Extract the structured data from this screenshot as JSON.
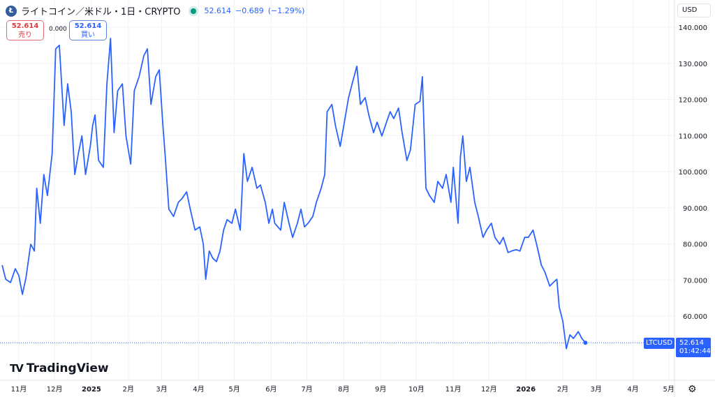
{
  "header": {
    "symbol": "ライトコイン／米ドル・1日・CRYPTO",
    "logo_letter": "Ł",
    "last": "52.614",
    "change": "−0.689",
    "change_pct": "(−1.29%)"
  },
  "trade": {
    "sell_price": "52.614",
    "sell_label": "売り",
    "spread": "0.000",
    "buy_price": "52.614",
    "buy_label": "買い"
  },
  "currency_button": "USD",
  "brand": "TradingView",
  "last_label": {
    "symbol": "LTCUSD",
    "price": "52.614",
    "countdown": "01:42:44"
  },
  "colors": {
    "line": "#2962ff",
    "grid": "#f0f3fa",
    "sell": "#e0393e",
    "buy": "#2962ff"
  },
  "chart_data": {
    "type": "line",
    "series": [
      {
        "name": "LTCUSD",
        "dates": [
          "2024-10-18",
          "2024-10-21",
          "2024-10-25",
          "2024-10-29",
          "2024-11-01",
          "2024-11-04",
          "2024-11-07",
          "2024-11-11",
          "2024-11-14",
          "2024-11-16",
          "2024-11-19",
          "2024-11-22",
          "2024-11-25",
          "2024-11-29",
          "2024-12-02",
          "2024-12-05",
          "2024-12-09",
          "2024-12-12",
          "2024-12-15",
          "2024-12-18",
          "2024-12-21",
          "2024-12-24",
          "2024-12-27",
          "2024-12-31",
          "2025-01-02",
          "2025-01-04",
          "2025-01-07",
          "2025-01-11",
          "2025-01-14",
          "2025-01-17",
          "2025-01-20",
          "2025-01-23",
          "2025-01-27",
          "2025-01-30",
          "2025-02-03",
          "2025-02-06",
          "2025-02-10",
          "2025-02-14",
          "2025-02-17",
          "2025-02-20",
          "2025-02-24",
          "2025-02-27",
          "2025-03-02",
          "2025-03-04",
          "2025-03-07",
          "2025-03-11",
          "2025-03-15",
          "2025-03-18",
          "2025-03-22",
          "2025-03-25",
          "2025-03-29",
          "2025-04-02",
          "2025-04-05",
          "2025-04-07",
          "2025-04-10",
          "2025-04-13",
          "2025-04-16",
          "2025-04-19",
          "2025-04-22",
          "2025-04-25",
          "2025-04-29",
          "2025-05-02",
          "2025-05-06",
          "2025-05-09",
          "2025-05-12",
          "2025-05-16",
          "2025-05-20",
          "2025-05-23",
          "2025-05-27",
          "2025-05-30",
          "2025-06-02",
          "2025-06-04",
          "2025-06-09",
          "2025-06-12",
          "2025-06-16",
          "2025-06-19",
          "2025-06-23",
          "2025-06-26",
          "2025-06-29",
          "2025-07-02",
          "2025-07-06",
          "2025-07-09",
          "2025-07-13",
          "2025-07-16",
          "2025-07-18",
          "2025-07-22",
          "2025-07-25",
          "2025-07-29",
          "2025-08-01",
          "2025-08-05",
          "2025-08-08",
          "2025-08-12",
          "2025-08-15",
          "2025-08-19",
          "2025-08-22",
          "2025-08-26",
          "2025-08-29",
          "2025-09-02",
          "2025-09-05",
          "2025-09-09",
          "2025-09-12",
          "2025-09-16",
          "2025-09-19",
          "2025-09-23",
          "2025-09-26",
          "2025-09-30",
          "2025-10-04",
          "2025-10-06",
          "2025-10-09",
          "2025-10-12",
          "2025-10-16",
          "2025-10-19",
          "2025-10-23",
          "2025-10-26",
          "2025-10-30",
          "2025-11-01",
          "2025-11-05",
          "2025-11-07",
          "2025-11-09",
          "2025-11-12",
          "2025-11-15",
          "2025-11-19",
          "2025-11-22",
          "2025-11-26",
          "2025-11-29",
          "2025-12-03",
          "2025-12-06",
          "2025-12-10",
          "2025-12-13",
          "2025-12-17",
          "2025-12-20",
          "2025-12-24",
          "2025-12-27",
          "2025-12-31",
          "2026-01-03",
          "2026-01-07",
          "2026-01-10",
          "2026-01-14",
          "2026-01-17",
          "2026-01-21",
          "2026-01-24",
          "2026-01-27",
          "2026-01-29",
          "2026-02-01",
          "2026-02-04",
          "2026-02-07",
          "2026-02-10",
          "2026-02-14",
          "2026-02-17",
          "2026-02-20"
        ],
        "values": [
          74.1,
          70.2,
          69.3,
          73.1,
          71.2,
          66.0,
          70.6,
          79.9,
          78.0,
          95.4,
          85.7,
          99.2,
          93.4,
          105.0,
          134.0,
          135.0,
          112.8,
          124.3,
          116.6,
          99.2,
          105.0,
          109.9,
          99.2,
          107.0,
          112.8,
          115.7,
          103.1,
          101.2,
          124.3,
          136.9,
          110.8,
          122.4,
          124.3,
          109.9,
          102.1,
          122.4,
          126.3,
          132.1,
          134.0,
          118.6,
          126.3,
          128.2,
          112.8,
          104.1,
          89.6,
          87.6,
          91.5,
          92.5,
          94.4,
          89.6,
          83.8,
          84.7,
          79.9,
          70.2,
          78.0,
          76.0,
          75.1,
          78.0,
          83.8,
          86.7,
          85.7,
          89.6,
          83.8,
          105.0,
          97.3,
          101.2,
          95.4,
          96.3,
          91.5,
          85.7,
          89.6,
          85.7,
          83.8,
          91.5,
          85.7,
          81.8,
          85.7,
          89.6,
          84.7,
          85.7,
          87.6,
          91.5,
          95.4,
          99.2,
          116.6,
          118.6,
          112.8,
          107.0,
          112.8,
          120.5,
          124.3,
          129.2,
          118.6,
          120.5,
          115.7,
          110.8,
          113.7,
          109.9,
          112.8,
          116.6,
          114.7,
          117.6,
          110.8,
          103.1,
          106.0,
          118.6,
          119.5,
          126.3,
          95.4,
          93.4,
          91.5,
          97.3,
          95.4,
          99.2,
          91.5,
          101.2,
          85.7,
          104.1,
          109.9,
          97.3,
          101.2,
          91.5,
          87.6,
          81.8,
          83.8,
          85.7,
          81.8,
          79.9,
          81.8,
          77.6,
          78.0,
          78.4,
          78.0,
          81.8,
          81.8,
          83.8,
          79.9,
          74.1,
          72.2,
          68.3,
          69.3,
          70.2,
          62.5,
          58.6,
          51.0,
          54.8,
          53.8,
          55.7,
          53.8,
          52.614
        ]
      }
    ],
    "y_ticks": [
      "60.000",
      "70.000",
      "80.000",
      "90.000",
      "100.000",
      "110.000",
      "120.000",
      "130.000",
      "140.000"
    ],
    "x_ticks": [
      {
        "label": "11月",
        "date": "2024-11-01"
      },
      {
        "label": "12月",
        "date": "2024-12-01"
      },
      {
        "label": "2025",
        "date": "2025-01-01",
        "bold": true
      },
      {
        "label": "2月",
        "date": "2025-02-01"
      },
      {
        "label": "3月",
        "date": "2025-03-01"
      },
      {
        "label": "4月",
        "date": "2025-04-01"
      },
      {
        "label": "5月",
        "date": "2025-05-01"
      },
      {
        "label": "6月",
        "date": "2025-06-01"
      },
      {
        "label": "7月",
        "date": "2025-07-01"
      },
      {
        "label": "8月",
        "date": "2025-08-01"
      },
      {
        "label": "9月",
        "date": "2025-09-01"
      },
      {
        "label": "10月",
        "date": "2025-10-01"
      },
      {
        "label": "11月",
        "date": "2025-11-01"
      },
      {
        "label": "12月",
        "date": "2025-12-01"
      },
      {
        "label": "2026",
        "date": "2026-01-01",
        "bold": true
      },
      {
        "label": "2月",
        "date": "2026-02-01"
      },
      {
        "label": "3月",
        "date": "2026-03-01"
      },
      {
        "label": "4月",
        "date": "2026-04-01"
      },
      {
        "label": "5月",
        "date": "2026-05-01"
      }
    ],
    "grid": true,
    "y_scale": "linear",
    "axis_position": "right"
  }
}
